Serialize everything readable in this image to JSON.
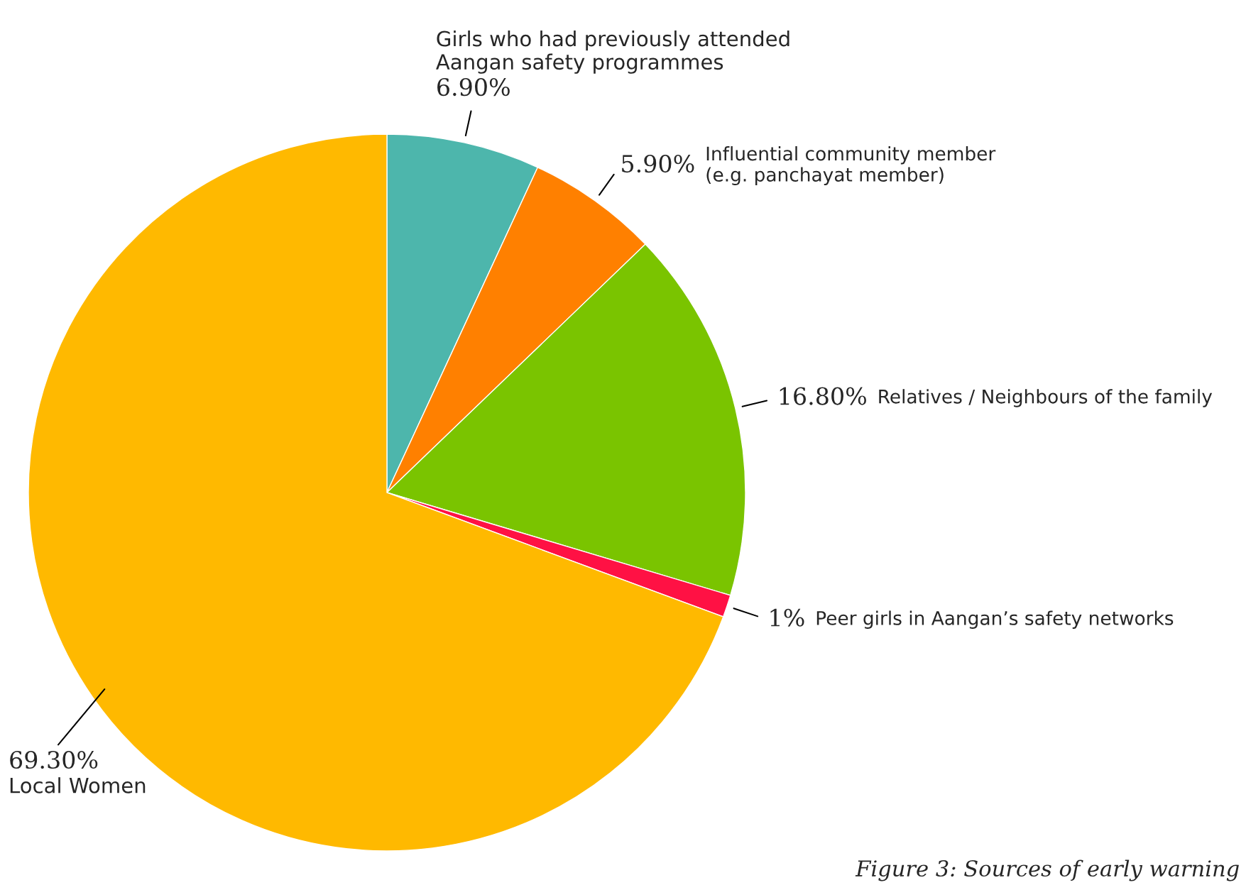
{
  "chart_data": {
    "type": "pie",
    "categories": [
      "Girls who had previously attended\nAangan safety programmes",
      "Influential community member\n(e.g. panchayat member)",
      "Relatives / Neighbours of the family",
      "Peer girls in Aangan’s safety networks",
      "Local Women"
    ],
    "values": [
      6.9,
      5.9,
      16.8,
      1,
      69.3
    ],
    "colors": [
      "#4db6ac",
      "#ff8000",
      "#7ac400",
      "#ff1144",
      "#ffb900"
    ],
    "value_labels": [
      "6.90%",
      "5.90%",
      "16.80%",
      "1%",
      "69.30%"
    ],
    "annotations": [
      "Figure 3: Sources of early warning"
    ]
  }
}
